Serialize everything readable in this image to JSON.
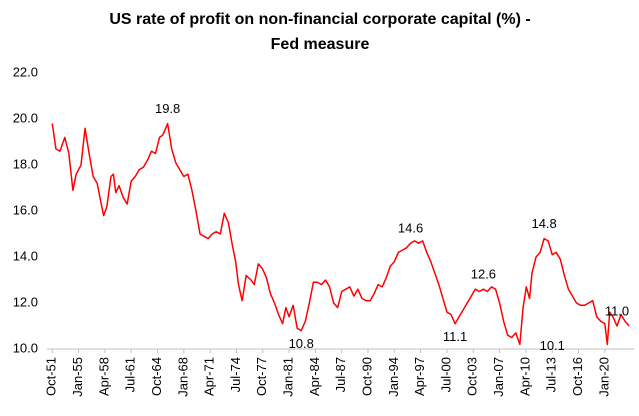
{
  "chart_data": {
    "type": "line",
    "title": [
      "US rate of profit on non-financial corporate capital (%) -",
      "Fed measure"
    ],
    "x": [
      1951.75,
      1952.2,
      1952.7,
      1953.3,
      1953.8,
      1954.3,
      1954.7,
      1955.3,
      1955.8,
      1956.3,
      1956.8,
      1957.3,
      1957.8,
      1958.1,
      1958.5,
      1959.0,
      1959.3,
      1959.6,
      1960.0,
      1960.5,
      1961.0,
      1961.5,
      1962.0,
      1962.5,
      1963.0,
      1963.5,
      1964.0,
      1964.5,
      1965.0,
      1965.4,
      1966.0,
      1966.5,
      1967.0,
      1967.5,
      1968.0,
      1968.5,
      1969.0,
      1969.5,
      1970.0,
      1970.5,
      1971.0,
      1971.5,
      1972.0,
      1972.5,
      1973.0,
      1973.5,
      1974.0,
      1974.4,
      1974.75,
      1975.2,
      1975.7,
      1976.3,
      1976.7,
      1977.2,
      1977.7,
      1978.2,
      1978.7,
      1979.2,
      1979.7,
      1980.2,
      1980.6,
      1981.0,
      1981.5,
      1982.0,
      1982.5,
      1983.0,
      1983.5,
      1984.0,
      1984.5,
      1985.0,
      1985.5,
      1986.0,
      1986.5,
      1987.0,
      1987.5,
      1988.0,
      1988.5,
      1989.0,
      1989.5,
      1990.0,
      1990.5,
      1991.0,
      1991.5,
      1992.0,
      1992.5,
      1993.0,
      1993.5,
      1994.0,
      1994.5,
      1995.0,
      1995.5,
      1996.0,
      1996.5,
      1997.0,
      1997.5,
      1998.0,
      1998.5,
      1999.0,
      1999.5,
      2000.0,
      2000.5,
      2001.0,
      2001.5,
      2002.0,
      2002.5,
      2003.0,
      2003.5,
      2004.0,
      2004.5,
      2005.0,
      2005.5,
      2006.0,
      2006.5,
      2007.0,
      2007.5,
      2008.0,
      2008.5,
      2009.0,
      2009.5,
      2009.9,
      2010.3,
      2010.7,
      2011.0,
      2011.5,
      2012.0,
      2012.5,
      2013.0,
      2013.5,
      2014.0,
      2014.5,
      2015.0,
      2015.5,
      2016.0,
      2016.5,
      2017.0,
      2017.5,
      2018.0,
      2018.5,
      2019.0,
      2019.5,
      2020.0,
      2020.3,
      2020.6,
      2021.0,
      2021.5,
      2022.0,
      2022.5,
      2023.0
    ],
    "series": [
      {
        "color": "#ff0000",
        "values": [
          19.8,
          18.7,
          18.6,
          19.2,
          18.5,
          16.9,
          17.6,
          18.0,
          19.6,
          18.5,
          17.5,
          17.2,
          16.3,
          15.8,
          16.2,
          17.5,
          17.6,
          16.8,
          17.1,
          16.6,
          16.3,
          17.3,
          17.5,
          17.8,
          17.9,
          18.2,
          18.6,
          18.5,
          19.2,
          19.3,
          19.8,
          18.7,
          18.1,
          17.8,
          17.5,
          17.6,
          16.9,
          16.0,
          15.0,
          14.9,
          14.8,
          15.0,
          15.1,
          15.0,
          15.9,
          15.5,
          14.5,
          13.8,
          12.8,
          12.1,
          13.2,
          13.0,
          12.8,
          13.7,
          13.5,
          13.1,
          12.4,
          12.0,
          11.5,
          11.1,
          11.8,
          11.4,
          11.9,
          10.9,
          10.8,
          11.2,
          12.0,
          12.9,
          12.9,
          12.8,
          13.0,
          12.7,
          12.0,
          11.8,
          12.5,
          12.6,
          12.7,
          12.3,
          12.6,
          12.2,
          12.1,
          12.1,
          12.4,
          12.8,
          12.7,
          13.1,
          13.6,
          13.8,
          14.2,
          14.3,
          14.4,
          14.6,
          14.7,
          14.6,
          14.7,
          14.2,
          13.8,
          13.3,
          12.8,
          12.2,
          11.6,
          11.5,
          11.1,
          11.4,
          11.7,
          12.0,
          12.3,
          12.6,
          12.5,
          12.6,
          12.5,
          12.7,
          12.6,
          12.0,
          11.2,
          10.6,
          10.5,
          10.7,
          10.2,
          11.8,
          12.7,
          12.2,
          13.3,
          14.0,
          14.2,
          14.8,
          14.7,
          14.1,
          14.2,
          13.9,
          13.2,
          12.6,
          12.3,
          12.0,
          11.9,
          11.9,
          12.0,
          12.1,
          11.4,
          11.2,
          11.1,
          10.2,
          11.6,
          11.4,
          11.0,
          11.5,
          11.2,
          11.0
        ]
      }
    ],
    "xlim": [
      1951.1,
      2023.6
    ],
    "xticks": [
      {
        "value": 1951.75,
        "label": "Oct-51"
      },
      {
        "value": 1955.0,
        "label": "Jan-55"
      },
      {
        "value": 1958.25,
        "label": "Apr-58"
      },
      {
        "value": 1961.5,
        "label": "Jul-61"
      },
      {
        "value": 1964.75,
        "label": "Oct-64"
      },
      {
        "value": 1968.0,
        "label": "Jan-68"
      },
      {
        "value": 1971.25,
        "label": "Apr-71"
      },
      {
        "value": 1974.5,
        "label": "Jul-74"
      },
      {
        "value": 1977.75,
        "label": "Oct-77"
      },
      {
        "value": 1981.0,
        "label": "Jan-81"
      },
      {
        "value": 1984.25,
        "label": "Apr-84"
      },
      {
        "value": 1987.5,
        "label": "Jul-87"
      },
      {
        "value": 1990.75,
        "label": "Oct-90"
      },
      {
        "value": 1994.0,
        "label": "Jan-94"
      },
      {
        "value": 1997.25,
        "label": "Apr-97"
      },
      {
        "value": 2000.5,
        "label": "Jul-00"
      },
      {
        "value": 2003.75,
        "label": "Oct-03"
      },
      {
        "value": 2007.0,
        "label": "Jan-07"
      },
      {
        "value": 2010.25,
        "label": "Apr-10"
      },
      {
        "value": 2013.5,
        "label": "Jul-13"
      },
      {
        "value": 2016.75,
        "label": "Oct-16"
      },
      {
        "value": 2020.0,
        "label": "Jan-20"
      }
    ],
    "ylim": [
      10,
      22
    ],
    "yticks": [
      {
        "value": 10,
        "label": "10.0"
      },
      {
        "value": 12,
        "label": "12.0"
      },
      {
        "value": 14,
        "label": "14.0"
      },
      {
        "value": 16,
        "label": "16.0"
      },
      {
        "value": 18,
        "label": "18.0"
      },
      {
        "value": 20,
        "label": "20.0"
      },
      {
        "value": 22,
        "label": "22.0"
      }
    ],
    "grid": false,
    "annotations": [
      {
        "text": "19.8",
        "x": 1966.0,
        "y": 19.8,
        "position": "above"
      },
      {
        "text": "10.8",
        "x": 1982.5,
        "y": 10.8,
        "position": "below"
      },
      {
        "text": "14.6",
        "x": 1996.0,
        "y": 14.6,
        "position": "above"
      },
      {
        "text": "11.1",
        "x": 2001.5,
        "y": 11.1,
        "position": "below"
      },
      {
        "text": "12.6",
        "x": 2005.0,
        "y": 12.6,
        "position": "above"
      },
      {
        "text": "10.1",
        "x": 2011.2,
        "y": 10.1,
        "position": "right"
      },
      {
        "text": "14.8",
        "x": 2012.5,
        "y": 14.8,
        "position": "above"
      },
      {
        "text": "11.0",
        "x": 2021.5,
        "y": 11.0,
        "position": "above"
      }
    ]
  }
}
